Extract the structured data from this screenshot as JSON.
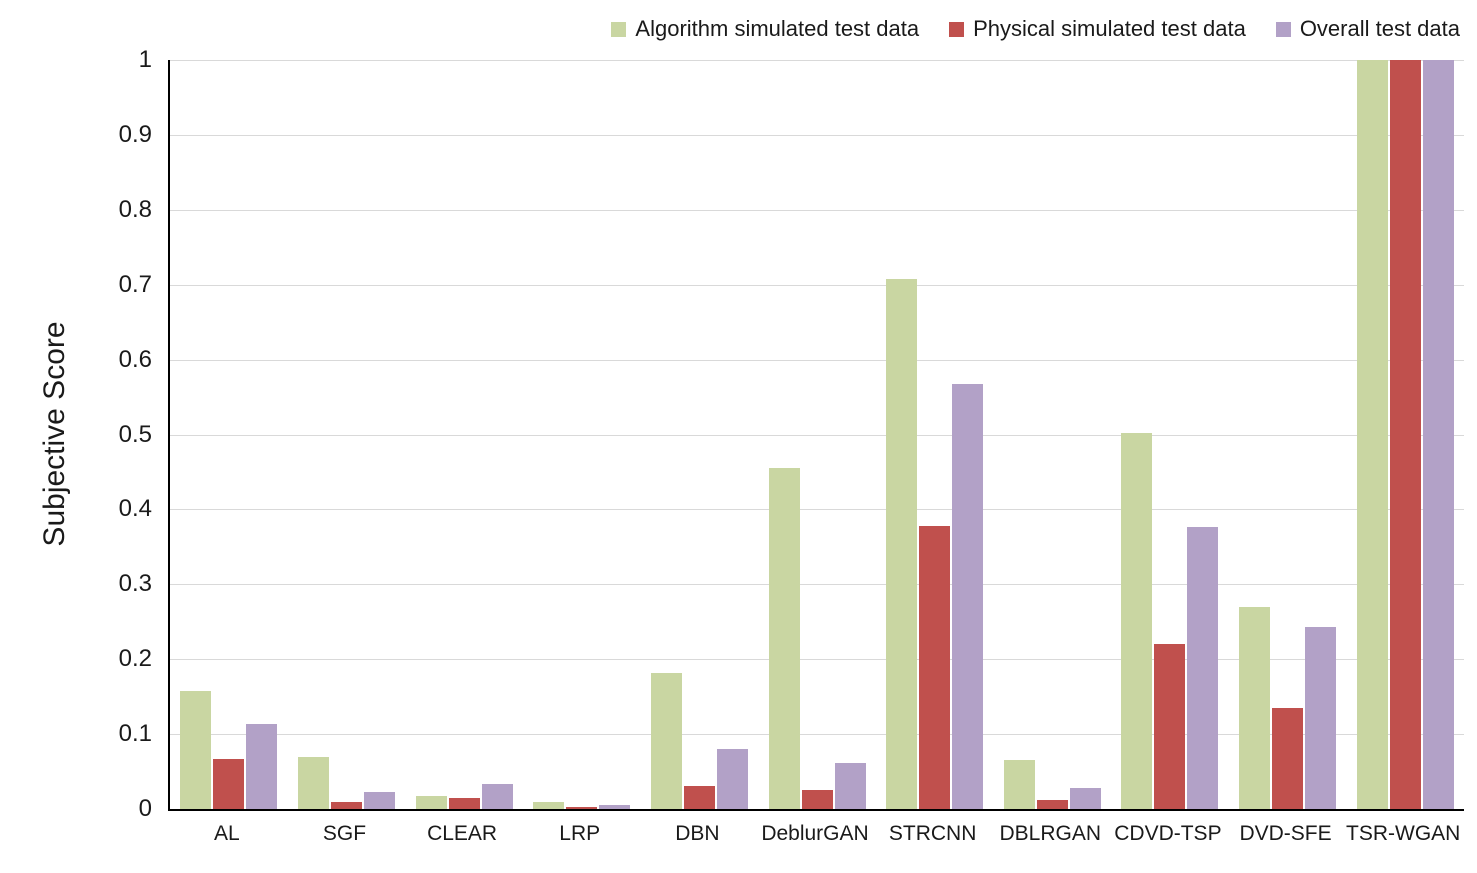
{
  "chart_data": {
    "type": "bar",
    "title": "",
    "xlabel": "",
    "ylabel": "Subjective Score",
    "ylim": [
      0,
      1
    ],
    "y_ticks": [
      {
        "value": 0,
        "label": "0"
      },
      {
        "value": 0.1,
        "label": "0.1"
      },
      {
        "value": 0.2,
        "label": "0.2"
      },
      {
        "value": 0.3,
        "label": "0.3"
      },
      {
        "value": 0.4,
        "label": "0.4"
      },
      {
        "value": 0.5,
        "label": "0.5"
      },
      {
        "value": 0.6,
        "label": "0.6"
      },
      {
        "value": 0.7,
        "label": "0.7"
      },
      {
        "value": 0.8,
        "label": "0.8"
      },
      {
        "value": 0.9,
        "label": "0.9"
      },
      {
        "value": 1,
        "label": "1"
      }
    ],
    "categories": [
      "AL",
      "SGF",
      "CLEAR",
      "LRP",
      "DBN",
      "DeblurGAN",
      "STRCNN",
      "DBLRGAN",
      "CDVD-TSP",
      "DVD-SFE",
      "TSR-WGAN"
    ],
    "series": [
      {
        "name": "Algorithm simulated test data",
        "color": "#c9d6a2",
        "values": [
          0.158,
          0.07,
          0.017,
          0.009,
          0.181,
          0.455,
          0.708,
          0.065,
          0.502,
          0.27,
          1.0
        ]
      },
      {
        "name": "Physical simulated test data",
        "color": "#c0504d",
        "values": [
          0.067,
          0.009,
          0.015,
          0.003,
          0.031,
          0.026,
          0.378,
          0.012,
          0.22,
          0.135,
          1.0
        ]
      },
      {
        "name": "Overall test data",
        "color": "#b2a1c7",
        "values": [
          0.114,
          0.023,
          0.034,
          0.005,
          0.08,
          0.061,
          0.568,
          0.028,
          0.376,
          0.243,
          1.0
        ]
      }
    ],
    "legend_position": "top-right",
    "grid": true,
    "gridline_color": "#d9d9d9",
    "axis_color": "#000000",
    "background": "#ffffff"
  }
}
